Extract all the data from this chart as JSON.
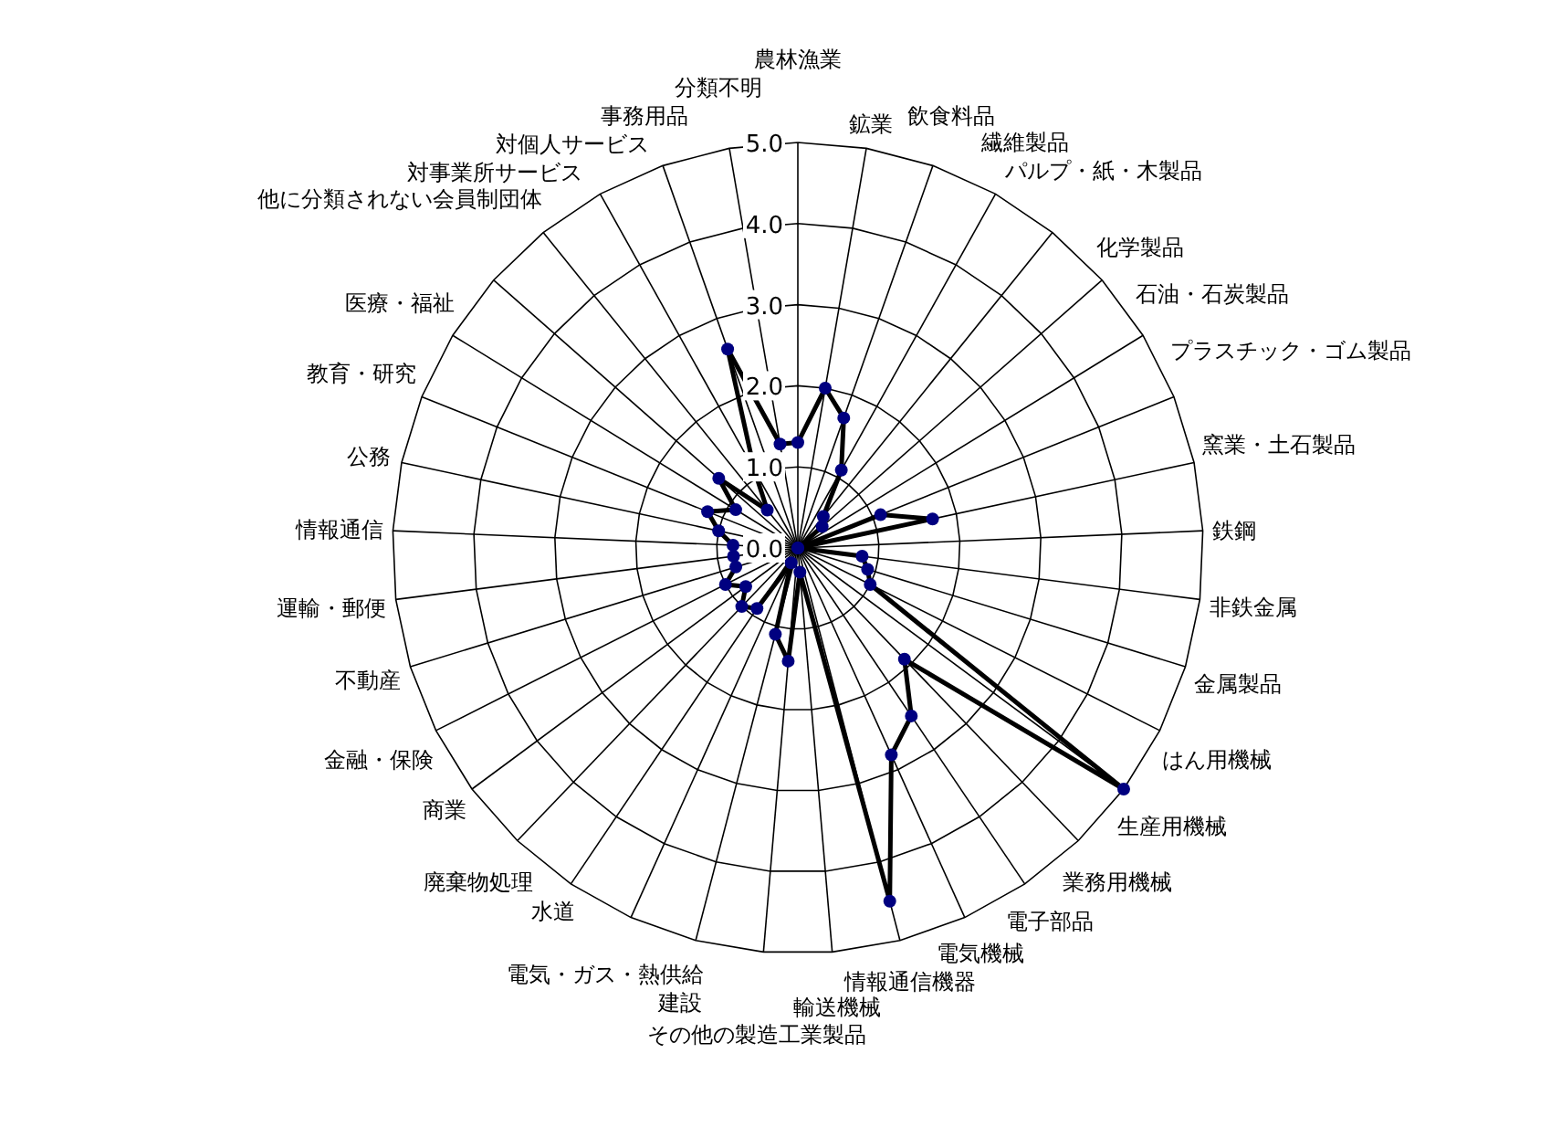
{
  "chart_data": {
    "type": "radar",
    "categories": [
      "農林漁業",
      "鉱業",
      "飲食料品",
      "繊維製品",
      "パルプ・紙・木製品",
      "化学製品",
      "石油・石炭製品",
      "プラスチック・ゴム製品",
      "窯業・土石製品",
      "鉄鋼",
      "非鉄金属",
      "金属製品",
      "はん用機械",
      "生産用機械",
      "業務用機械",
      "電子部品",
      "電気機械",
      "情報通信機器",
      "輸送機械",
      "その他の製造工業製品",
      "建設",
      "電気・ガス・熱供給",
      "水道",
      "廃棄物処理",
      "商業",
      "金融・保険",
      "不動産",
      "運輸・郵便",
      "情報通信",
      "公務",
      "教育・研究",
      "医療・福祉",
      "他に分類されない会員制団体",
      "対事業所サービス",
      "対個人サービス",
      "事務用品",
      "分類不明"
    ],
    "series": [
      {
        "color": "#000000",
        "values": [
          1.3,
          2.0,
          1.7,
          1.1,
          0.5,
          0.4,
          0.0,
          1.1,
          1.7,
          0.0,
          0.8,
          0.9,
          1.0,
          5.0,
          1.9,
          2.5,
          2.8,
          4.5,
          0.3,
          1.4,
          1.1,
          0.2,
          0.9,
          1.0,
          0.8,
          1.0,
          0.8,
          0.8,
          0.8,
          1.0,
          1.2,
          0.9,
          1.3,
          0.6,
          1.1,
          2.6,
          1.3
        ]
      }
    ],
    "ylim": [
      0,
      5
    ],
    "yticks": [
      {
        "value": 0,
        "label": "0.0"
      },
      {
        "value": 1,
        "label": "1.0"
      },
      {
        "value": 2,
        "label": "2.0"
      },
      {
        "value": 3,
        "label": "3.0"
      },
      {
        "value": 4,
        "label": "4.0"
      },
      {
        "value": 5,
        "label": "5.0"
      }
    ],
    "marker": "circle",
    "grid": true
  }
}
